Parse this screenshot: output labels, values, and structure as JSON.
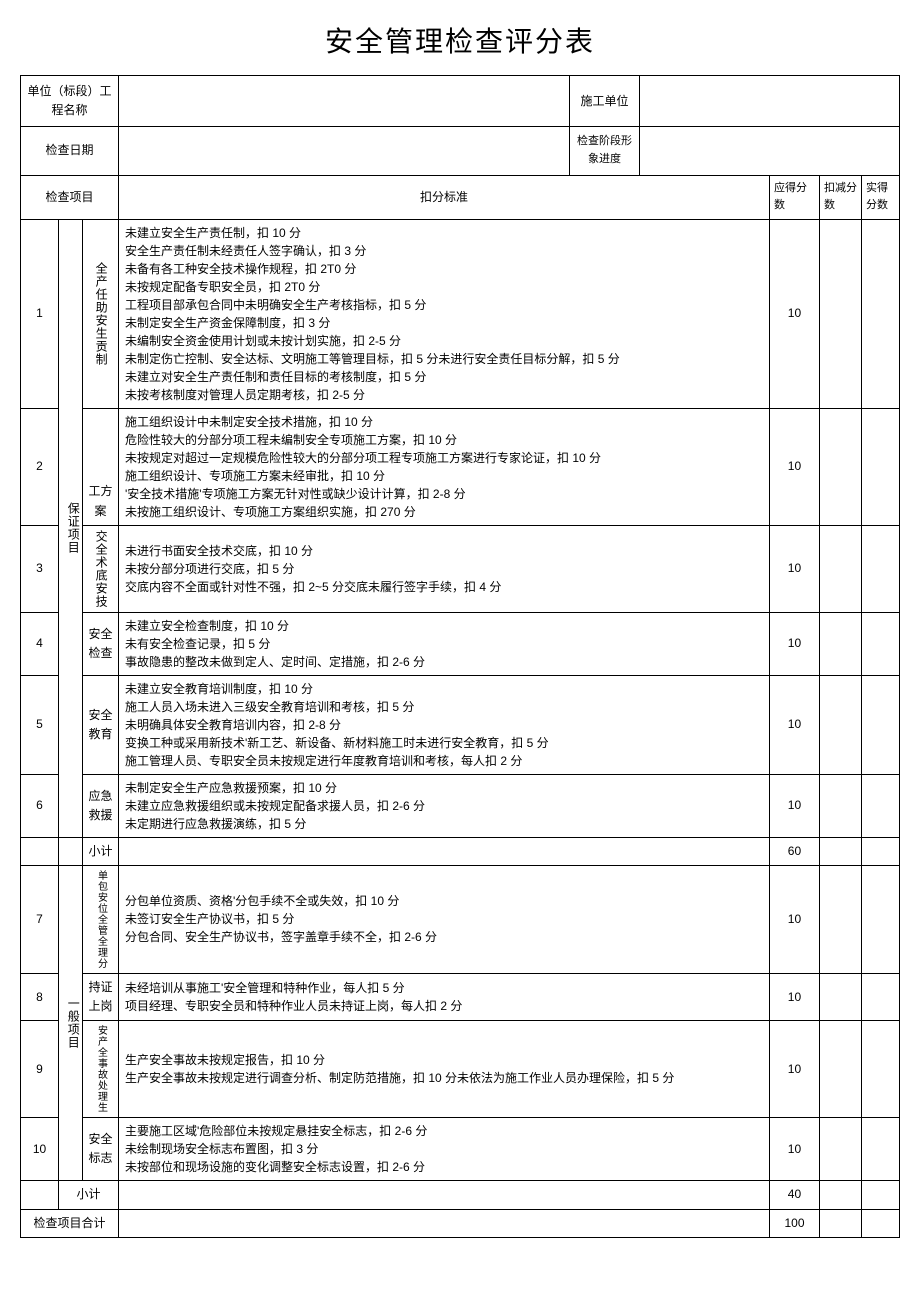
{
  "title": "安全管理检查评分表",
  "header": {
    "unit_label": "单位（标段）工程名称",
    "unit_value": "",
    "contractor_label": "施工单位",
    "contractor_value": "",
    "date_label": "检查日期",
    "date_value": "",
    "phase_label": "检查阶段形象进度",
    "phase_value": ""
  },
  "columns": {
    "item": "检查项目",
    "criteria": "扣分标准",
    "expected": "应得分数",
    "deduction": "扣减分数",
    "actual": "实得分数"
  },
  "categories": {
    "cat1": "保证项目",
    "cat2": "一般项目"
  },
  "rows": [
    {
      "num": "1",
      "item": "全产任助安生贡制",
      "expected": "10",
      "criteria": "未建立安全生产责任制，扣 10 分\n安全生产责任制未经责任人签字确认，扣 3 分\n未备有各工种安全技术操作规程，扣 2T0 分\n未按规定配备专职安全员，扣 2T0 分\n工程项目部承包合同中未明确安全生产考核指标，扣 5 分\n未制定安全生产资金保障制度，扣 3 分\n未编制安全资金使用计划或未按计划实施，扣 2-5 分\n未制定伤亡控制、安全达标、文明施工等管理目标，扣 5 分未进行安全责任目标分解，扣 5 分\n未建立对安全生产责任制和责任目标的考核制度，扣 5 分\n未按考核制度对管理人员定期考核，扣 2-5 分"
    },
    {
      "num": "2",
      "item": "工方案",
      "expected": "10",
      "criteria": "施工组织设计中未制定安全技术措施，扣 10 分\n危险性较大的分部分项工程未编制安全专项施工方案，扣 10 分\n未按规定对超过一定规模危险性较大的分部分项工程专项施工方案进行专家论证，扣 10 分\n施工组织设计、专项施工方案未经审批，扣 10 分\n'安全技术措施'专项施工方案无针对性或缺少设计计算，扣 2-8 分\n未按施工组织设计、专项施工方案组织实施，扣 270 分"
    },
    {
      "num": "3",
      "item": "交全术底安技",
      "expected": "10",
      "criteria": "未进行书面安全技术交底，扣 10 分\n未按分部分项进行交底，扣 5 分\n交底内容不全面或针对性不强，扣 2~5 分交底未履行签字手续，扣 4 分"
    },
    {
      "num": "4",
      "item": "安全检查",
      "expected": "10",
      "criteria": "未建立安全检查制度，扣 10 分\n未有安全检查记录，扣 5 分\n事故隐患的整改未做到定人、定时间、定措施，扣 2-6 分"
    },
    {
      "num": "5",
      "item": "安全教育",
      "expected": "10",
      "criteria": "未建立安全教育培训制度，扣 10 分\n施工人员入场未进入三级安全教育培训和考核，扣 5 分\n未明确具体安全教育培训内容，扣 2-8 分\n变换工种或采用新技术'新工艺、新设备、新材料施工时未进行安全教育，扣 5 分\n施工管理人员、专职安全员未按规定进行年度教育培训和考核，每人扣 2 分"
    },
    {
      "num": "6",
      "item": "应急救援",
      "expected": "10",
      "criteria": "未制定安全生产应急救援预案，扣 10 分\n未建立应急救援组织或未按规定配备求援人员，扣 2-6 分\n未定期进行应急救援演练，扣 5 分"
    }
  ],
  "subtotal1": {
    "label": "小计",
    "expected": "60"
  },
  "rows2": [
    {
      "num": "7",
      "item": "单包安位全管全理分",
      "expected": "10",
      "criteria": "分包单位资质、资格'分包手续不全或失效，扣 10 分\n未签订安全生产协议书，扣 5 分\n分包合同、安全生产协议书，签字盖章手续不全，扣 2-6 分"
    },
    {
      "num": "8",
      "item": "持证上岗",
      "expected": "10",
      "criteria": "未经培训从事施工'安全管理和特种作业，每人扣 5 分\n项目经理、专职安全员和特种作业人员未持证上岗，每人扣 2 分"
    },
    {
      "num": "9",
      "item": "安产全事故处理生",
      "expected": "10",
      "criteria": "生产安全事故未按规定报告，扣 10 分\n生产安全事故未按规定进行调查分析、制定防范措施，扣 10 分未依法为施工作业人员办理保险，扣 5 分"
    },
    {
      "num": "10",
      "item": "安全标志",
      "expected": "10",
      "criteria": "主要施工区域'危险部位未按规定悬挂安全标志，扣 2-6 分\n未绘制现场安全标志布置图，扣 3 分\n未按部位和现场设施的变化调整安全标志设置，扣 2-6 分"
    }
  ],
  "subtotal2": {
    "label": "小计",
    "expected": "40"
  },
  "total": {
    "label": "检查项目合计",
    "expected": "100"
  }
}
